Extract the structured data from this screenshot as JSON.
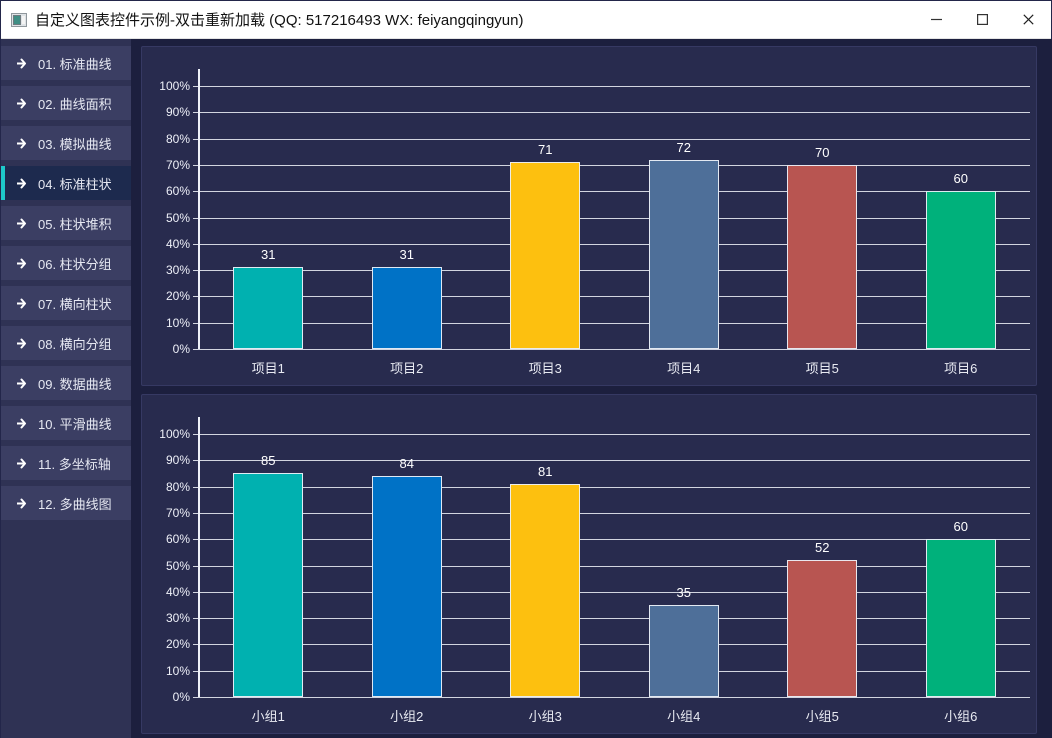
{
  "window": {
    "title": "自定义图表控件示例-双击重新加载 (QQ: 517216493 WX: feiyangqingyun)"
  },
  "sidebar": {
    "accent_color": "#1ec9ca",
    "items": [
      {
        "label": "01. 标准曲线",
        "selected": false
      },
      {
        "label": "02. 曲线面积",
        "selected": false
      },
      {
        "label": "03. 模拟曲线",
        "selected": false
      },
      {
        "label": "04. 标准柱状",
        "selected": true
      },
      {
        "label": "05. 柱状堆积",
        "selected": false
      },
      {
        "label": "06. 柱状分组",
        "selected": false
      },
      {
        "label": "07. 横向柱状",
        "selected": false
      },
      {
        "label": "08. 横向分组",
        "selected": false
      },
      {
        "label": "09. 数据曲线",
        "selected": false
      },
      {
        "label": "10. 平滑曲线",
        "selected": false
      },
      {
        "label": "11. 多坐标轴",
        "selected": false
      },
      {
        "label": "12. 多曲线图",
        "selected": false
      }
    ]
  },
  "chart_data": [
    {
      "type": "bar",
      "title": "",
      "categories": [
        "项目1",
        "项目2",
        "项目3",
        "项目4",
        "项目5",
        "项目6"
      ],
      "values": [
        31,
        31,
        71,
        72,
        70,
        60
      ],
      "bar_colors": [
        "#00b1b0",
        "#0072c6",
        "#fdc00f",
        "#4e6f99",
        "#b85551",
        "#00b17b"
      ],
      "xlabel": "",
      "ylabel": "",
      "ylim": [
        0,
        100
      ],
      "ytick_step": 10,
      "ytick_suffix": "%",
      "grid": true,
      "legend": "none"
    },
    {
      "type": "bar",
      "title": "",
      "categories": [
        "小组1",
        "小组2",
        "小组3",
        "小组4",
        "小组5",
        "小组6"
      ],
      "values": [
        85,
        84,
        81,
        35,
        52,
        60
      ],
      "bar_colors": [
        "#00b1b0",
        "#0072c6",
        "#fdc00f",
        "#4e6f99",
        "#b85551",
        "#00b17b"
      ],
      "xlabel": "",
      "ylabel": "",
      "ylim": [
        0,
        100
      ],
      "ytick_step": 10,
      "ytick_suffix": "%",
      "grid": true,
      "legend": "none"
    }
  ]
}
